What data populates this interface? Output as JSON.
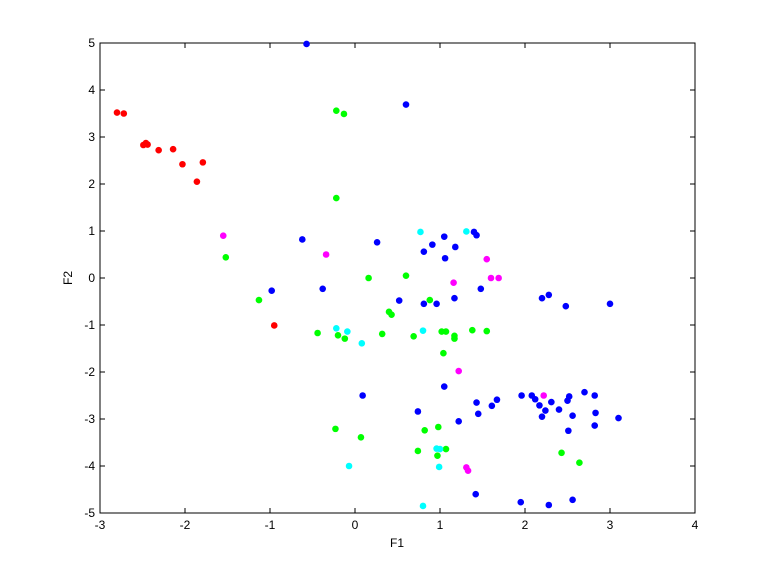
{
  "chart_data": {
    "type": "scatter",
    "title": "",
    "xlabel": "F1",
    "ylabel": "F2",
    "xlim": [
      -3,
      4
    ],
    "ylim": [
      -5,
      5
    ],
    "xticks": [
      "-3",
      "-2",
      "-1",
      "0",
      "1",
      "2",
      "3",
      "4"
    ],
    "yticks": [
      "-5",
      "-4",
      "-3",
      "-2",
      "-1",
      "0",
      "1",
      "2",
      "3",
      "4",
      "5"
    ],
    "grid": false,
    "legend": "none",
    "series": [
      {
        "color": "#ff0000",
        "points": [
          [
            -2.8,
            3.52
          ],
          [
            -2.72,
            3.5
          ],
          [
            -2.49,
            2.83
          ],
          [
            -2.46,
            2.87
          ],
          [
            -2.44,
            2.84
          ],
          [
            -2.31,
            2.72
          ],
          [
            -2.14,
            2.74
          ],
          [
            -2.03,
            2.42
          ],
          [
            -1.86,
            2.05
          ],
          [
            -1.79,
            2.46
          ],
          [
            -0.95,
            -1.01
          ]
        ]
      },
      {
        "color": "#0000ff",
        "points": [
          [
            -0.57,
            4.98
          ],
          [
            0.6,
            3.69
          ],
          [
            -0.62,
            0.82
          ],
          [
            0.26,
            0.76
          ],
          [
            -0.98,
            -0.27
          ],
          [
            -0.38,
            -0.23
          ],
          [
            0.81,
            0.56
          ],
          [
            0.91,
            0.71
          ],
          [
            1.05,
            0.88
          ],
          [
            1.06,
            0.42
          ],
          [
            1.18,
            0.66
          ],
          [
            1.4,
            0.98
          ],
          [
            1.43,
            0.91
          ],
          [
            0.52,
            -0.48
          ],
          [
            0.81,
            -0.55
          ],
          [
            0.96,
            -0.55
          ],
          [
            1.17,
            -0.43
          ],
          [
            1.48,
            -0.23
          ],
          [
            2.2,
            -0.43
          ],
          [
            2.28,
            -0.36
          ],
          [
            2.48,
            -0.6
          ],
          [
            3.0,
            -0.55
          ],
          [
            0.09,
            -2.5
          ],
          [
            0.74,
            -2.84
          ],
          [
            1.05,
            -2.31
          ],
          [
            1.43,
            -2.65
          ],
          [
            1.45,
            -2.89
          ],
          [
            1.61,
            -2.72
          ],
          [
            1.67,
            -2.59
          ],
          [
            1.96,
            -2.5
          ],
          [
            2.08,
            -2.5
          ],
          [
            2.12,
            -2.58
          ],
          [
            2.17,
            -2.71
          ],
          [
            2.2,
            -2.95
          ],
          [
            2.24,
            -2.82
          ],
          [
            2.31,
            -2.64
          ],
          [
            2.4,
            -2.8
          ],
          [
            2.5,
            -2.61
          ],
          [
            2.52,
            -2.52
          ],
          [
            2.56,
            -2.93
          ],
          [
            2.51,
            -3.25
          ],
          [
            2.7,
            -2.43
          ],
          [
            2.82,
            -2.5
          ],
          [
            2.83,
            -2.87
          ],
          [
            2.82,
            -3.14
          ],
          [
            3.1,
            -2.98
          ],
          [
            1.22,
            -3.05
          ],
          [
            1.42,
            -4.6
          ],
          [
            1.95,
            -4.77
          ],
          [
            2.28,
            -4.83
          ],
          [
            2.56,
            -4.72
          ]
        ]
      },
      {
        "color": "#00ff00",
        "points": [
          [
            -0.22,
            3.56
          ],
          [
            -0.13,
            3.49
          ],
          [
            -0.22,
            1.7
          ],
          [
            -1.52,
            0.44
          ],
          [
            -1.13,
            -0.47
          ],
          [
            0.16,
            0.0
          ],
          [
            0.6,
            0.05
          ],
          [
            0.4,
            -0.72
          ],
          [
            0.43,
            -0.78
          ],
          [
            -0.44,
            -1.17
          ],
          [
            -0.2,
            -1.22
          ],
          [
            -0.12,
            -1.29
          ],
          [
            0.32,
            -1.19
          ],
          [
            0.69,
            -1.24
          ],
          [
            0.88,
            -0.47
          ],
          [
            1.02,
            -1.14
          ],
          [
            1.07,
            -1.14
          ],
          [
            1.17,
            -1.23
          ],
          [
            1.17,
            -1.29
          ],
          [
            1.38,
            -1.11
          ],
          [
            1.55,
            -1.13
          ],
          [
            1.04,
            -1.6
          ],
          [
            -0.23,
            -3.21
          ],
          [
            0.07,
            -3.39
          ],
          [
            0.82,
            -3.24
          ],
          [
            0.98,
            -3.17
          ],
          [
            0.74,
            -3.68
          ],
          [
            0.97,
            -3.78
          ],
          [
            1.07,
            -3.64
          ],
          [
            2.43,
            -3.72
          ],
          [
            2.64,
            -3.93
          ]
        ]
      },
      {
        "color": "#00ffff",
        "points": [
          [
            0.77,
            0.98
          ],
          [
            1.31,
            0.99
          ],
          [
            -0.22,
            -1.07
          ],
          [
            -0.09,
            -1.14
          ],
          [
            0.08,
            -1.39
          ],
          [
            0.8,
            -1.12
          ],
          [
            0.96,
            -3.63
          ],
          [
            1.0,
            -3.64
          ],
          [
            0.99,
            -4.02
          ],
          [
            -0.07,
            -4.0
          ],
          [
            0.8,
            -4.85
          ]
        ]
      },
      {
        "color": "#ff00ff",
        "points": [
          [
            -1.55,
            0.9
          ],
          [
            -0.34,
            0.5
          ],
          [
            1.16,
            -0.1
          ],
          [
            1.55,
            0.4
          ],
          [
            1.6,
            0.0
          ],
          [
            1.69,
            0.0
          ],
          [
            1.22,
            -1.98
          ],
          [
            2.22,
            -2.5
          ],
          [
            1.31,
            -4.03
          ],
          [
            1.33,
            -4.1
          ]
        ]
      }
    ]
  }
}
